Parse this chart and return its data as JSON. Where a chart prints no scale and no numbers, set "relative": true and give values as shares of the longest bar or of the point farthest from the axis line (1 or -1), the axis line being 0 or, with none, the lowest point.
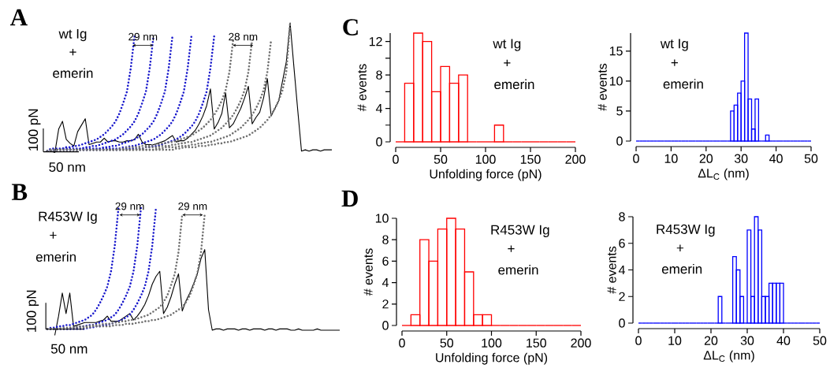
{
  "chart_data": [
    {
      "type": "line",
      "title": "A",
      "relative": true,
      "tick_labels": false,
      "categories": [
        null,
        null,
        null,
        null,
        null,
        null,
        null,
        null,
        null,
        null,
        null,
        null,
        null,
        null,
        null,
        null,
        null,
        null,
        null,
        null,
        null,
        null,
        null,
        null,
        null,
        null,
        null,
        null,
        null,
        null,
        null,
        null,
        null,
        null,
        null,
        null,
        null,
        null,
        null,
        null,
        null,
        null,
        null,
        null,
        null,
        null,
        null,
        null,
        null,
        null,
        null,
        null,
        null,
        null,
        null,
        null,
        null,
        null,
        null,
        null,
        null,
        null,
        null,
        null,
        null,
        null,
        null,
        null,
        null,
        null,
        null,
        null,
        null,
        null,
        null,
        null
      ],
      "annotations": [
        "wt Ig",
        "+",
        "emerin",
        "29 nm",
        "28 nm",
        "100 pN",
        "50 nm"
      ],
      "series": [
        {
          "color": "#000000",
          "line_style": "solid",
          "values": [
            null,
            0.01,
            0,
            0.18,
            0.24,
            0.1,
            0.07,
            0.05,
            0.16,
            0.21,
            0.26,
            0.06,
            0.07,
            0.08,
            0.08,
            0.11,
            0.08,
            0.09,
            0.09,
            0.08,
            0.08,
            0.09,
            0.09,
            0.1,
            0.14,
            0.08,
            0.06,
            0.06,
            0.06,
            0.07,
            0.08,
            0.09,
            0.11,
            0.13,
            0.08,
            0.09,
            0.09,
            0.11,
            0.14,
            0.17,
            0.22,
            0.28,
            0.36,
            0.49,
            0.18,
            0.23,
            0.3,
            0.46,
            0.19,
            0.22,
            0.28,
            0.34,
            0.42,
            0.51,
            0.22,
            0.27,
            0.31,
            0.42,
            0.57,
            0.28,
            0.34,
            0.4,
            0.55,
            0.7,
            1,
            0.66,
            0.33,
            0.01,
            0.02,
            0.01,
            0.02,
            0.02,
            0.01,
            0.02,
            0.02,
            0.02
          ]
        },
        {
          "color": "#1a1acc",
          "line_style": "dotted",
          "values": [
            0.01,
            0.03,
            0.03,
            0.03,
            0.03,
            0.04,
            0.04,
            0.05,
            0.05,
            0.06,
            0.07,
            0.08,
            0.09,
            0.1,
            0.12,
            0.14,
            0.17,
            0.2,
            0.24,
            0.3,
            0.38,
            0.47,
            0.65,
            0.9,
            null,
            null,
            null,
            null,
            null,
            null,
            null,
            null,
            null,
            null,
            null,
            null,
            null,
            null,
            null,
            null,
            null,
            null,
            null,
            null,
            null,
            null,
            null,
            null,
            null,
            null,
            null,
            null,
            null,
            null,
            null,
            null,
            null,
            null,
            null,
            null,
            null,
            null,
            null,
            null,
            null,
            null,
            null,
            null,
            null,
            null,
            null,
            null,
            null,
            null,
            null,
            null
          ]
        },
        {
          "color": "#1a1acc",
          "line_style": "dotted",
          "values": [
            0.01,
            0.02,
            0.02,
            0.02,
            0.03,
            0.03,
            0.03,
            0.03,
            0.03,
            0.03,
            0.04,
            0.04,
            0.05,
            0.05,
            0.06,
            0.07,
            0.08,
            0.09,
            0.1,
            0.12,
            0.14,
            0.17,
            0.2,
            0.24,
            0.3,
            0.38,
            0.47,
            0.65,
            0.9,
            null,
            null,
            null,
            null,
            null,
            null,
            null,
            null,
            null,
            null,
            null,
            null,
            null,
            null,
            null,
            null,
            null,
            null,
            null,
            null,
            null,
            null,
            null,
            null,
            null,
            null,
            null,
            null,
            null,
            null,
            null,
            null,
            null,
            null,
            null,
            null,
            null,
            null,
            null,
            null,
            null,
            null,
            null,
            null,
            null,
            null,
            null
          ]
        },
        {
          "color": "#1a1acc",
          "line_style": "dotted",
          "values": [
            0.01,
            0.02,
            0.02,
            0.02,
            0.02,
            0.02,
            0.02,
            0.02,
            0.02,
            0.03,
            0.03,
            0.03,
            0.03,
            0.03,
            0.03,
            0.04,
            0.04,
            0.05,
            0.05,
            0.06,
            0.07,
            0.08,
            0.09,
            0.1,
            0.12,
            0.14,
            0.17,
            0.2,
            0.24,
            0.3,
            0.38,
            0.47,
            0.65,
            0.9,
            null,
            null,
            null,
            null,
            null,
            null,
            null,
            null,
            null,
            null,
            null,
            null,
            null,
            null,
            null,
            null,
            null,
            null,
            null,
            null,
            null,
            null,
            null,
            null,
            null,
            null,
            null,
            null,
            null,
            null,
            null,
            null,
            null,
            null,
            null,
            null,
            null,
            null,
            null,
            null,
            null,
            null
          ]
        },
        {
          "color": "#1a1acc",
          "line_style": "dotted",
          "values": [
            0.01,
            0.02,
            0.02,
            0.02,
            0.02,
            0.02,
            0.02,
            0.02,
            0.02,
            0.02,
            0.02,
            0.02,
            0.02,
            0.02,
            0.03,
            0.03,
            0.03,
            0.03,
            0.03,
            0.03,
            0.04,
            0.04,
            0.05,
            0.05,
            0.06,
            0.07,
            0.08,
            0.09,
            0.1,
            0.12,
            0.14,
            0.17,
            0.2,
            0.24,
            0.3,
            0.38,
            0.47,
            0.65,
            0.9,
            null,
            null,
            null,
            null,
            null,
            null,
            null,
            null,
            null,
            null,
            null,
            null,
            null,
            null,
            null,
            null,
            null,
            null,
            null,
            null,
            null,
            null,
            null,
            null,
            null,
            null,
            null,
            null,
            null,
            null,
            null,
            null,
            null,
            null,
            null,
            null,
            null
          ]
        },
        {
          "color": "#1a1acc",
          "line_style": "dotted",
          "values": [
            0.01,
            0.02,
            0.02,
            0.02,
            0.02,
            0.02,
            0.02,
            0.02,
            0.02,
            0.02,
            0.02,
            0.02,
            0.02,
            0.02,
            0.02,
            0.02,
            0.02,
            0.02,
            0.02,
            0.02,
            0.03,
            0.03,
            0.03,
            0.03,
            0.03,
            0.03,
            0.04,
            0.04,
            0.05,
            0.05,
            0.06,
            0.07,
            0.08,
            0.09,
            0.1,
            0.12,
            0.14,
            0.17,
            0.2,
            0.24,
            0.3,
            0.38,
            0.47,
            0.65,
            0.9,
            null,
            null,
            null,
            null,
            null,
            null,
            null,
            null,
            null,
            null,
            null,
            null,
            null,
            null,
            null,
            null,
            null,
            null,
            null,
            null,
            null,
            null,
            null,
            null,
            null,
            null,
            null,
            null,
            null,
            null,
            null
          ]
        },
        {
          "color": "#707070",
          "line_style": "dotted",
          "values": [
            0.01,
            0.02,
            0.02,
            0.02,
            0.02,
            0.02,
            0.02,
            0.02,
            0.02,
            0.02,
            0.02,
            0.02,
            0.02,
            0.02,
            0.02,
            0.02,
            0.02,
            0.02,
            0.02,
            0.03,
            0.03,
            0.04,
            0.04,
            0.04,
            0.04,
            0.05,
            0.05,
            0.05,
            0.06,
            0.06,
            0.07,
            0.07,
            0.08,
            0.08,
            0.09,
            0.1,
            0.11,
            0.12,
            0.13,
            0.15,
            0.17,
            0.19,
            0.22,
            0.25,
            0.29,
            0.34,
            0.4,
            0.48,
            0.62,
            0.87,
            null,
            null,
            null,
            null,
            null,
            null,
            null,
            null,
            null,
            null,
            null,
            null,
            null,
            null,
            null,
            null,
            null,
            null,
            null,
            null,
            null,
            null,
            null,
            null,
            null,
            null
          ]
        },
        {
          "color": "#707070",
          "line_style": "dotted",
          "values": [
            0.01,
            0.02,
            0.02,
            0.02,
            0.02,
            0.02,
            0.02,
            0.02,
            0.02,
            0.02,
            0.02,
            0.02,
            0.02,
            0.02,
            0.02,
            0.02,
            0.02,
            0.02,
            0.02,
            0.02,
            0.02,
            0.02,
            0.02,
            0.02,
            0.03,
            0.03,
            0.04,
            0.04,
            0.04,
            0.04,
            0.05,
            0.05,
            0.05,
            0.06,
            0.06,
            0.07,
            0.07,
            0.08,
            0.08,
            0.09,
            0.1,
            0.11,
            0.12,
            0.13,
            0.15,
            0.17,
            0.19,
            0.22,
            0.25,
            0.29,
            0.34,
            0.4,
            0.48,
            0.62,
            0.87,
            null,
            null,
            null,
            null,
            null,
            null,
            null,
            null,
            null,
            null,
            null,
            null,
            null,
            null,
            null,
            null,
            null,
            null,
            null,
            null,
            null
          ]
        },
        {
          "color": "#707070",
          "line_style": "dotted",
          "values": [
            0.01,
            0.02,
            0.02,
            0.02,
            0.02,
            0.02,
            0.02,
            0.02,
            0.02,
            0.02,
            0.02,
            0.02,
            0.02,
            0.02,
            0.02,
            0.02,
            0.02,
            0.02,
            0.02,
            0.02,
            0.02,
            0.02,
            0.02,
            0.02,
            0.02,
            0.02,
            0.02,
            0.02,
            0.02,
            0.03,
            0.03,
            0.04,
            0.04,
            0.04,
            0.04,
            0.05,
            0.05,
            0.05,
            0.06,
            0.06,
            0.07,
            0.07,
            0.08,
            0.08,
            0.09,
            0.1,
            0.11,
            0.12,
            0.13,
            0.15,
            0.17,
            0.19,
            0.22,
            0.25,
            0.29,
            0.34,
            0.4,
            0.48,
            0.62,
            0.87,
            null,
            null,
            null,
            null,
            null,
            null,
            null,
            null,
            null,
            null,
            null,
            null,
            null,
            null,
            null,
            null
          ]
        },
        {
          "color": "#707070",
          "line_style": "dotted",
          "values": [
            0.01,
            0.02,
            0.02,
            0.02,
            0.02,
            0.02,
            0.02,
            0.02,
            0.02,
            0.02,
            0.02,
            0.02,
            0.02,
            0.02,
            0.02,
            0.02,
            0.02,
            0.02,
            0.02,
            0.02,
            0.02,
            0.02,
            0.02,
            0.02,
            0.02,
            0.02,
            0.02,
            0.02,
            0.02,
            0.02,
            0.02,
            0.02,
            0.02,
            0.02,
            0.03,
            0.03,
            0.04,
            0.04,
            0.04,
            0.04,
            0.05,
            0.05,
            0.05,
            0.06,
            0.06,
            0.07,
            0.07,
            0.08,
            0.08,
            0.09,
            0.1,
            0.11,
            0.12,
            0.13,
            0.15,
            0.17,
            0.19,
            0.22,
            0.25,
            0.29,
            0.34,
            0.4,
            0.48,
            0.62,
            1,
            null,
            null,
            null,
            null,
            null,
            null,
            null,
            null,
            null,
            null,
            null
          ]
        }
      ]
    },
    {
      "type": "line",
      "title": "B",
      "relative": true,
      "tick_labels": false,
      "categories": [
        null,
        null,
        null,
        null,
        null,
        null,
        null,
        null,
        null,
        null,
        null,
        null,
        null,
        null,
        null,
        null,
        null,
        null,
        null,
        null,
        null,
        null,
        null,
        null,
        null,
        null,
        null,
        null,
        null,
        null,
        null,
        null,
        null,
        null,
        null,
        null,
        null,
        null,
        null,
        null,
        null,
        null,
        null,
        null,
        null,
        null,
        null,
        null,
        null,
        null,
        null,
        null,
        null,
        null,
        null,
        null,
        null,
        null,
        null,
        null,
        null,
        null,
        null,
        null,
        null,
        null,
        null,
        null,
        null,
        null,
        null,
        null,
        null,
        null,
        null,
        null,
        null,
        null,
        null
      ],
      "annotations": [
        "R453W Ig",
        "+",
        "emerin",
        "29 nm",
        "29 nm",
        "100 pN",
        "50 nm"
      ],
      "series": [
        {
          "color": "#000000",
          "line_style": "solid",
          "values": [
            null,
            null,
            0,
            0.15,
            0.33,
            0.17,
            0.33,
            0.07,
            0.08,
            0.09,
            0.1,
            0.1,
            0.1,
            0.1,
            0.11,
            0.12,
            0.15,
            0.11,
            0.11,
            0.11,
            0.13,
            0.15,
            0.17,
            0.12,
            0.15,
            0.19,
            0.24,
            0.31,
            0.4,
            0.46,
            0.5,
            0.17,
            0.22,
            0.3,
            0.4,
            0.48,
            0.19,
            0.27,
            0.33,
            0.4,
            0.48,
            0.6,
            0.67,
            0.2,
            0.04,
            0.05,
            0.05,
            0.04,
            0.05,
            0.05,
            0.05,
            0.04,
            0.05,
            0.05,
            0.04,
            0.05,
            0.05,
            0.05,
            0.04,
            0.05,
            0.05,
            0.04,
            0.05,
            0.05,
            0.05,
            0.04,
            0.04,
            0.05,
            0.04,
            0.04,
            0.04,
            0.04,
            0.05,
            0.04,
            0.04,
            0.04,
            0.04,
            0.04,
            0.04
          ]
        },
        {
          "color": "#1a1acc",
          "line_style": "dotted",
          "values": [
            0.05,
            0.06,
            0.06,
            0.07,
            0.07,
            0.08,
            0.08,
            0.09,
            0.1,
            0.11,
            0.12,
            0.14,
            0.16,
            0.2,
            0.25,
            0.31,
            0.38,
            0.5,
            0.7,
            1.0,
            null,
            null,
            null,
            null,
            null,
            null,
            null,
            null,
            null,
            null,
            null,
            null,
            null,
            null,
            null,
            null,
            null,
            null,
            null,
            null,
            null,
            null,
            null,
            null,
            null,
            null,
            null,
            null,
            null,
            null,
            null,
            null,
            null,
            null,
            null,
            null,
            null,
            null,
            null,
            null,
            null,
            null,
            null,
            null,
            null,
            null,
            null,
            null,
            null,
            null,
            null,
            null,
            null,
            null,
            null,
            null,
            null,
            null,
            null
          ]
        },
        {
          "color": "#1a1acc",
          "line_style": "dotted",
          "values": [
            0.05,
            0.05,
            0.05,
            0.05,
            0.05,
            0.05,
            0.05,
            0.06,
            0.06,
            0.07,
            0.07,
            0.08,
            0.08,
            0.09,
            0.1,
            0.11,
            0.12,
            0.14,
            0.16,
            0.2,
            0.25,
            0.31,
            0.38,
            0.5,
            0.7,
            1.0,
            null,
            null,
            null,
            null,
            null,
            null,
            null,
            null,
            null,
            null,
            null,
            null,
            null,
            null,
            null,
            null,
            null,
            null,
            null,
            null,
            null,
            null,
            null,
            null,
            null,
            null,
            null,
            null,
            null,
            null,
            null,
            null,
            null,
            null,
            null,
            null,
            null,
            null,
            null,
            null,
            null,
            null,
            null,
            null,
            null,
            null,
            null,
            null,
            null,
            null,
            null,
            null,
            null
          ]
        },
        {
          "color": "#1a1acc",
          "line_style": "dotted",
          "values": [
            0.05,
            0.05,
            0.05,
            0.05,
            0.05,
            0.05,
            0.05,
            0.05,
            0.05,
            0.05,
            0.05,
            0.06,
            0.06,
            0.07,
            0.07,
            0.08,
            0.08,
            0.09,
            0.1,
            0.11,
            0.12,
            0.14,
            0.16,
            0.2,
            0.25,
            0.31,
            0.38,
            0.5,
            0.7,
            1.0,
            null,
            null,
            null,
            null,
            null,
            null,
            null,
            null,
            null,
            null,
            null,
            null,
            null,
            null,
            null,
            null,
            null,
            null,
            null,
            null,
            null,
            null,
            null,
            null,
            null,
            null,
            null,
            null,
            null,
            null,
            null,
            null,
            null,
            null,
            null,
            null,
            null,
            null,
            null,
            null,
            null,
            null,
            null,
            null,
            null,
            null,
            null,
            null,
            null
          ]
        },
        {
          "color": "#707070",
          "line_style": "dotted",
          "values": [
            0.05,
            0.05,
            0.05,
            0.05,
            0.06,
            0.06,
            0.06,
            0.06,
            0.07,
            0.07,
            0.07,
            0.07,
            0.08,
            0.08,
            0.08,
            0.09,
            0.09,
            0.09,
            0.1,
            0.1,
            0.11,
            0.11,
            0.12,
            0.12,
            0.13,
            0.14,
            0.15,
            0.16,
            0.18,
            0.2,
            0.22,
            0.26,
            0.31,
            0.39,
            0.48,
            0.65,
            0.95,
            null,
            null,
            null,
            null,
            null,
            null,
            null,
            null,
            null,
            null,
            null,
            null,
            null,
            null,
            null,
            null,
            null,
            null,
            null,
            null,
            null,
            null,
            null,
            null,
            null,
            null,
            null,
            null,
            null,
            null,
            null,
            null,
            null,
            null,
            null,
            null,
            null,
            null,
            null,
            null,
            null,
            null
          ]
        },
        {
          "color": "#707070",
          "line_style": "dotted",
          "values": [
            0.05,
            0.05,
            0.05,
            0.05,
            0.05,
            0.05,
            0.06,
            0.06,
            0.06,
            0.06,
            0.06,
            0.06,
            0.07,
            0.07,
            0.07,
            0.07,
            0.07,
            0.07,
            0.08,
            0.08,
            0.08,
            0.09,
            0.09,
            0.09,
            0.1,
            0.1,
            0.11,
            0.11,
            0.12,
            0.12,
            0.13,
            0.14,
            0.15,
            0.16,
            0.18,
            0.2,
            0.22,
            0.26,
            0.31,
            0.39,
            0.48,
            0.65,
            0.95,
            null,
            null,
            null,
            null,
            null,
            null,
            null,
            null,
            null,
            null,
            null,
            null,
            null,
            null,
            null,
            null,
            null,
            null,
            null,
            null,
            null,
            null,
            null,
            null,
            null,
            null,
            null,
            null,
            null,
            null,
            null,
            null,
            null,
            null,
            null,
            null
          ]
        }
      ]
    },
    {
      "type": "histogram",
      "title": "C",
      "xlabel": "Unfolding force (pN)",
      "ylabel": "# events",
      "color": "#ff0000",
      "bins": [
        0,
        10,
        20,
        30,
        40,
        50,
        60,
        70,
        80,
        90,
        100,
        110,
        120,
        130,
        140,
        150,
        160,
        170,
        180,
        190,
        200
      ],
      "values": [
        0,
        7,
        13,
        12,
        6,
        9,
        7,
        8,
        0,
        0,
        0,
        2,
        0,
        0,
        0,
        0,
        0,
        0,
        0,
        0
      ],
      "xlim": [
        0,
        200
      ],
      "ylim": [
        0,
        13
      ],
      "xticks": [
        0,
        50,
        100,
        150,
        200
      ],
      "yticks": [
        0,
        {
          "value": 2,
          "label": null
        },
        4,
        {
          "value": 6,
          "label": null
        },
        8,
        {
          "value": 10,
          "label": null
        },
        12
      ],
      "annotations": [
        "wt Ig",
        "+",
        "emerin"
      ]
    },
    {
      "type": "histogram",
      "xlabel": "ΔL$_{C}$ (nm)",
      "ylabel": "# events",
      "color": "#0000ff",
      "bins": [
        0,
        1,
        2,
        3,
        4,
        5,
        6,
        7,
        8,
        9,
        10,
        11,
        12,
        13,
        14,
        15,
        16,
        17,
        18,
        19,
        20,
        21,
        22,
        23,
        24,
        25,
        26,
        27,
        28,
        29,
        30,
        31,
        32,
        33,
        34,
        35,
        36,
        37,
        38,
        39,
        40,
        41,
        42,
        43,
        44,
        45,
        46,
        47,
        48,
        49,
        50
      ],
      "values": [
        0,
        0,
        0,
        0,
        0,
        0,
        0,
        0,
        0,
        0,
        0,
        0,
        0,
        0,
        0,
        0,
        0,
        0,
        0,
        0,
        0,
        0,
        0,
        0,
        0,
        0,
        0,
        5,
        6,
        8,
        10,
        18,
        7,
        2,
        7,
        0,
        0,
        1,
        0,
        0,
        0,
        0,
        0,
        0,
        0,
        0,
        0,
        0,
        0,
        0
      ],
      "xlim": [
        0,
        50
      ],
      "ylim": [
        0,
        18
      ],
      "xticks": [
        0,
        10,
        20,
        30,
        40,
        50
      ],
      "yticks": [
        0,
        5,
        10,
        15
      ],
      "annotations": [
        "wt Ig",
        "+",
        "emerin"
      ]
    },
    {
      "type": "histogram",
      "title": "D",
      "xlabel": "Unfolding force (pN)",
      "ylabel": "# events",
      "color": "#ff0000",
      "bins": [
        0,
        10,
        20,
        30,
        40,
        50,
        60,
        70,
        80,
        90,
        100,
        110,
        120,
        130,
        140,
        150,
        160,
        170,
        180,
        190,
        200
      ],
      "values": [
        0,
        1,
        8,
        6,
        9,
        10,
        9,
        5,
        1,
        1,
        0,
        0,
        0,
        0,
        0,
        0,
        0,
        0,
        0,
        0
      ],
      "xlim": [
        0,
        200
      ],
      "ylim": [
        0,
        10
      ],
      "xticks": [
        0,
        50,
        100,
        150,
        200
      ],
      "yticks": [
        0,
        2,
        4,
        6,
        8,
        10
      ],
      "annotations": [
        "R453W Ig",
        "+",
        "emerin"
      ]
    },
    {
      "type": "histogram",
      "xlabel": "ΔL$_{C}$ (nm)",
      "ylabel": "# events",
      "color": "#0000ff",
      "bins": [
        0,
        1,
        2,
        3,
        4,
        5,
        6,
        7,
        8,
        9,
        10,
        11,
        12,
        13,
        14,
        15,
        16,
        17,
        18,
        19,
        20,
        21,
        22,
        23,
        24,
        25,
        26,
        27,
        28,
        29,
        30,
        31,
        32,
        33,
        34,
        35,
        36,
        37,
        38,
        39,
        40,
        41,
        42,
        43,
        44,
        45,
        46,
        47,
        48,
        49,
        50
      ],
      "values": [
        0,
        0,
        0,
        0,
        0,
        0,
        0,
        0,
        0,
        0,
        0,
        0,
        0,
        0,
        0,
        0,
        0,
        0,
        0,
        0,
        0,
        0,
        2,
        0,
        0,
        0,
        5,
        4,
        2,
        0,
        7,
        2,
        8,
        7,
        2,
        2,
        3,
        3,
        3,
        3,
        0,
        0,
        0,
        0,
        0,
        0,
        0,
        0,
        0,
        0
      ],
      "xlim": [
        0,
        50
      ],
      "ylim": [
        0,
        8
      ],
      "xticks": [
        0,
        10,
        20,
        30,
        40,
        50
      ],
      "yticks": [
        0,
        2,
        4,
        6,
        8
      ],
      "annotations": [
        "R453W Ig",
        "+",
        "emerin"
      ]
    }
  ]
}
